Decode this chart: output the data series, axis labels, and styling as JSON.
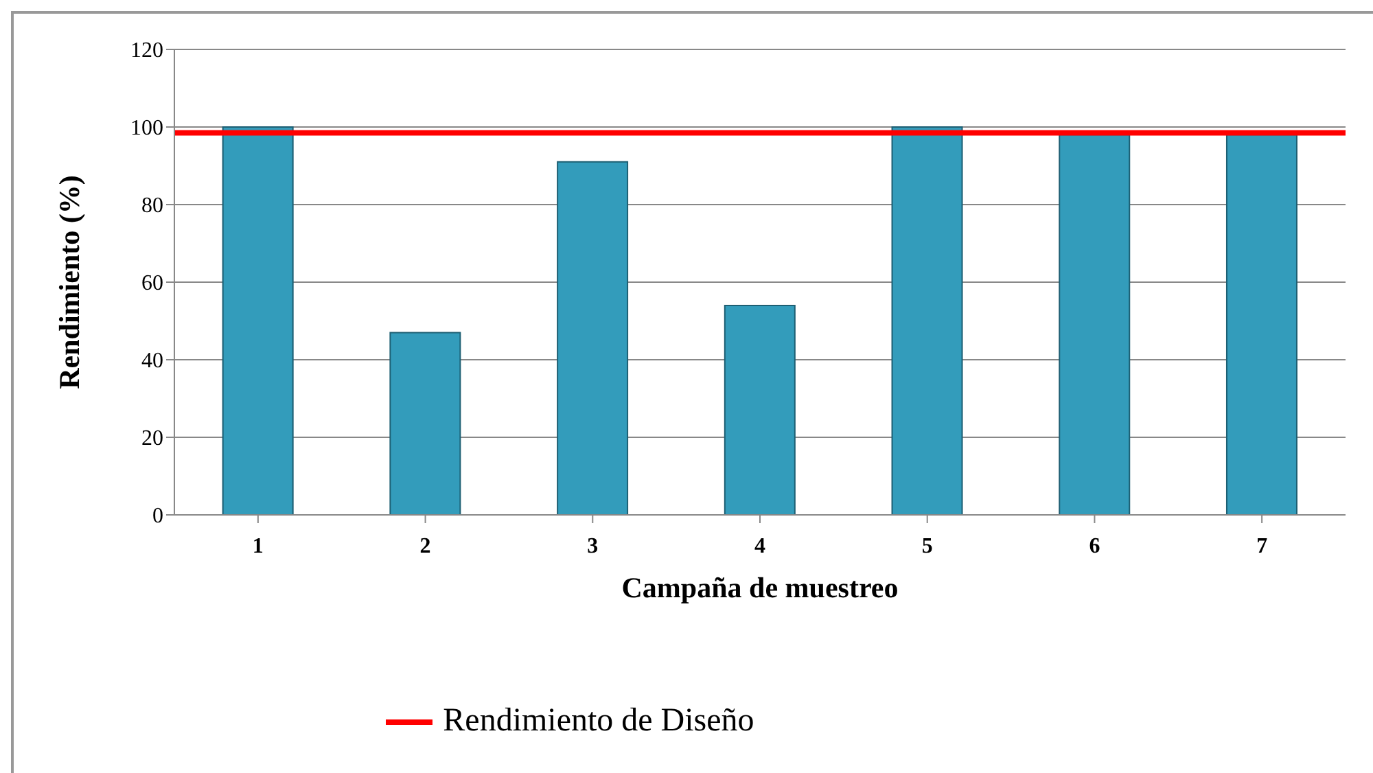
{
  "chart_data": {
    "type": "bar",
    "xlabel": "Campaña de muestreo",
    "ylabel": "Rendimiento (%)",
    "categories": [
      "1",
      "2",
      "3",
      "4",
      "5",
      "6",
      "7"
    ],
    "values": [
      100,
      47,
      91,
      54,
      100,
      98,
      98
    ],
    "color": "#339cbb",
    "ylim": [
      0,
      120
    ],
    "yticks": [
      0,
      20,
      40,
      60,
      80,
      100,
      120
    ],
    "grid": "y",
    "legend": "bottom",
    "ref_lines": [
      {
        "axis": "y",
        "value": 98.5,
        "label": "Rendimiento de Diseño",
        "color": "#ff0000"
      }
    ]
  }
}
